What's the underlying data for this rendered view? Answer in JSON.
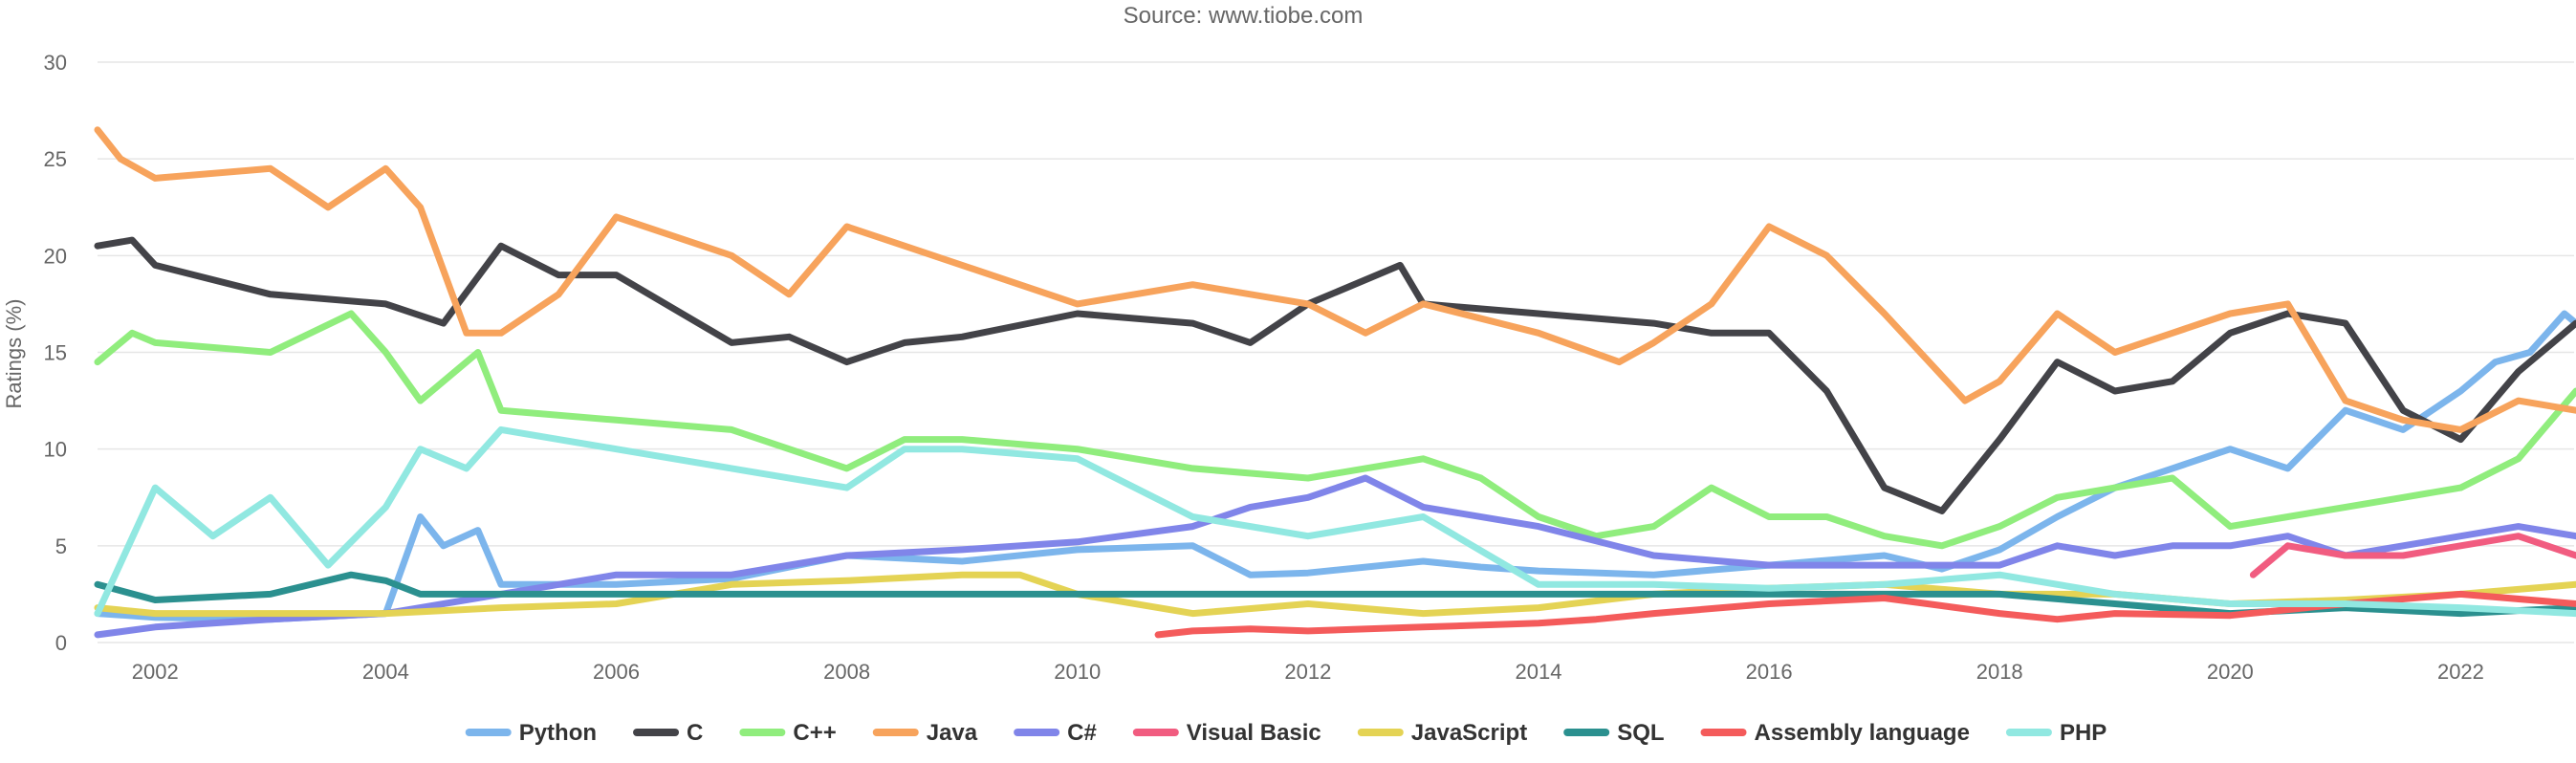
{
  "chart_data": {
    "type": "line",
    "title": "",
    "subtitle": "Source: www.tiobe.com",
    "xlabel": "",
    "ylabel": "Ratings (%)",
    "xlim": [
      2001.5,
      2023.0
    ],
    "ylim": [
      0,
      30
    ],
    "yticks": [
      0,
      5,
      10,
      15,
      20,
      25,
      30
    ],
    "xticks": [
      2002,
      2004,
      2006,
      2008,
      2010,
      2012,
      2014,
      2016,
      2018,
      2020,
      2022
    ],
    "grid": true,
    "legend_position": "bottom",
    "series": [
      {
        "name": "Python",
        "color": "#7cb5ec",
        "x": [
          2001.5,
          2002,
          2003,
          2004,
          2004.3,
          2004.5,
          2004.8,
          2005,
          2006,
          2007,
          2008,
          2009,
          2010,
          2011,
          2011.5,
          2012,
          2013,
          2013.5,
          2014,
          2015,
          2016,
          2017,
          2017.5,
          2018,
          2018.5,
          2019,
          2019.5,
          2020,
          2020.5,
          2021,
          2021.5,
          2022,
          2022.3,
          2022.6,
          2022.9,
          2023.0
        ],
        "y": [
          1.5,
          1.3,
          1.2,
          1.5,
          6.5,
          5.0,
          5.8,
          3.0,
          3.0,
          3.3,
          4.5,
          4.2,
          4.8,
          5.0,
          3.5,
          3.6,
          4.2,
          3.9,
          3.7,
          3.5,
          4.0,
          4.5,
          3.8,
          4.8,
          6.5,
          8.0,
          9.0,
          10.0,
          9.0,
          12.0,
          11.0,
          13.0,
          14.5,
          15.0,
          17.0,
          16.5
        ]
      },
      {
        "name": "C",
        "color": "#434348",
        "x": [
          2001.5,
          2001.8,
          2002,
          2003,
          2004,
          2004.5,
          2005,
          2005.5,
          2006,
          2007,
          2007.5,
          2008,
          2008.5,
          2009,
          2010,
          2011,
          2011.5,
          2012,
          2012.8,
          2013,
          2014,
          2015,
          2015.5,
          2016,
          2016.5,
          2017,
          2017.5,
          2018,
          2018.5,
          2019,
          2019.5,
          2020,
          2020.5,
          2021,
          2021.5,
          2022,
          2022.5,
          2023.0
        ],
        "y": [
          20.5,
          20.8,
          19.5,
          18.0,
          17.5,
          16.5,
          20.5,
          19.0,
          19.0,
          15.5,
          15.8,
          14.5,
          15.5,
          15.8,
          17.0,
          16.5,
          15.5,
          17.5,
          19.5,
          17.5,
          17.0,
          16.5,
          16.0,
          16.0,
          13.0,
          8.0,
          6.8,
          10.5,
          14.5,
          13.0,
          13.5,
          16.0,
          17.0,
          16.5,
          12.0,
          10.5,
          14.0,
          16.5
        ]
      },
      {
        "name": "C++",
        "color": "#90ed7d",
        "x": [
          2001.5,
          2001.8,
          2002,
          2003,
          2003.7,
          2004,
          2004.3,
          2004.8,
          2005,
          2006,
          2007,
          2008,
          2008.5,
          2009,
          2010,
          2011,
          2012,
          2013,
          2013.5,
          2014,
          2014.5,
          2015,
          2015.5,
          2016,
          2016.5,
          2017,
          2017.5,
          2018,
          2018.5,
          2019,
          2019.5,
          2020,
          2020.5,
          2021,
          2021.5,
          2022,
          2022.5,
          2023.0
        ],
        "y": [
          14.5,
          16.0,
          15.5,
          15.0,
          17.0,
          15.0,
          12.5,
          15.0,
          12.0,
          11.5,
          11.0,
          9.0,
          10.5,
          10.5,
          10.0,
          9.0,
          8.5,
          9.5,
          8.5,
          6.5,
          5.5,
          6.0,
          8.0,
          6.5,
          6.5,
          5.5,
          5.0,
          6.0,
          7.5,
          8.0,
          8.5,
          6.0,
          6.5,
          7.0,
          7.5,
          8.0,
          9.5,
          13.0
        ]
      },
      {
        "name": "Java",
        "color": "#f7a35c",
        "x": [
          2001.5,
          2001.7,
          2002,
          2003,
          2003.5,
          2004,
          2004.3,
          2004.7,
          2005,
          2005.5,
          2006,
          2007,
          2007.5,
          2008,
          2008.5,
          2009,
          2010,
          2011,
          2012,
          2012.5,
          2013,
          2014,
          2014.7,
          2015,
          2015.5,
          2016,
          2016.5,
          2017,
          2017.7,
          2018,
          2018.5,
          2019,
          2019.5,
          2020,
          2020.5,
          2021,
          2021.5,
          2022,
          2022.5,
          2023.0
        ],
        "y": [
          26.5,
          25.0,
          24.0,
          24.5,
          22.5,
          24.5,
          22.5,
          16.0,
          16.0,
          18.0,
          22.0,
          20.0,
          18.0,
          21.5,
          20.5,
          19.5,
          17.5,
          18.5,
          17.5,
          16.0,
          17.5,
          16.0,
          14.5,
          15.5,
          17.5,
          21.5,
          20.0,
          17.0,
          12.5,
          13.5,
          17.0,
          15.0,
          16.0,
          17.0,
          17.5,
          12.5,
          11.5,
          11.0,
          12.5,
          12.0
        ]
      },
      {
        "name": "C#",
        "color": "#8085e9",
        "x": [
          2001.5,
          2002,
          2003,
          2004,
          2005,
          2006,
          2007,
          2008,
          2009,
          2010,
          2011,
          2011.5,
          2012,
          2012.5,
          2013,
          2014,
          2015,
          2016,
          2017,
          2018,
          2018.5,
          2019,
          2019.5,
          2020,
          2020.5,
          2021,
          2021.5,
          2022,
          2022.5,
          2023.0
        ],
        "y": [
          0.4,
          0.8,
          1.2,
          1.5,
          2.5,
          3.5,
          3.5,
          4.5,
          4.8,
          5.2,
          6.0,
          7.0,
          7.5,
          8.5,
          7.0,
          6.0,
          4.5,
          4.0,
          4.0,
          4.0,
          5.0,
          4.5,
          5.0,
          5.0,
          5.5,
          4.5,
          5.0,
          5.5,
          6.0,
          5.5
        ]
      },
      {
        "name": "Visual Basic",
        "color": "#f15c80",
        "x": [
          2020.2,
          2020.5,
          2021,
          2021.5,
          2022,
          2022.5,
          2023.0
        ],
        "y": [
          3.5,
          5.0,
          4.5,
          4.5,
          5.0,
          5.5,
          4.5
        ]
      },
      {
        "name": "JavaScript",
        "color": "#e4d354",
        "x": [
          2001.5,
          2002,
          2003,
          2004,
          2005,
          2006,
          2007,
          2008,
          2009,
          2009.5,
          2010,
          2011,
          2012,
          2013,
          2014,
          2015,
          2016,
          2017,
          2018,
          2019,
          2020,
          2021,
          2022,
          2023.0
        ],
        "y": [
          1.8,
          1.5,
          1.5,
          1.5,
          1.8,
          2.0,
          3.0,
          3.2,
          3.5,
          3.5,
          2.5,
          1.5,
          2.0,
          1.5,
          1.8,
          2.5,
          2.8,
          3.0,
          2.5,
          2.5,
          2.0,
          2.2,
          2.5,
          3.0
        ]
      },
      {
        "name": "SQL",
        "color": "#2b908f",
        "x": [
          2001.5,
          2002,
          2003,
          2003.7,
          2004,
          2004.3,
          2010,
          2014,
          2015,
          2016,
          2017,
          2018,
          2019,
          2020,
          2021,
          2022,
          2023.0
        ],
        "y": [
          3.0,
          2.2,
          2.5,
          3.5,
          3.2,
          2.5,
          2.5,
          2.5,
          2.5,
          2.5,
          2.5,
          2.5,
          2.0,
          1.5,
          1.8,
          1.5,
          1.8
        ]
      },
      {
        "name": "Assembly language",
        "color": "#f45b5b",
        "x": [
          2010.7,
          2011,
          2011.5,
          2012,
          2013,
          2014,
          2014.5,
          2015,
          2016,
          2017,
          2018,
          2018.5,
          2019,
          2020,
          2021,
          2022,
          2023.0
        ],
        "y": [
          0.4,
          0.6,
          0.7,
          0.6,
          0.8,
          1.0,
          1.2,
          1.5,
          2.0,
          2.3,
          1.5,
          1.2,
          1.5,
          1.4,
          2.0,
          2.5,
          2.0
        ]
      },
      {
        "name": "PHP",
        "color": "#91e8e1",
        "x": [
          2001.5,
          2002,
          2002.5,
          2003,
          2003.5,
          2004,
          2004.3,
          2004.7,
          2005,
          2006,
          2007,
          2008,
          2008.5,
          2009,
          2010,
          2011,
          2012,
          2013,
          2014,
          2015,
          2016,
          2017,
          2018,
          2019,
          2020,
          2021,
          2022,
          2023.0
        ],
        "y": [
          1.5,
          8.0,
          5.5,
          7.5,
          4.0,
          7.0,
          10.0,
          9.0,
          11.0,
          10.0,
          9.0,
          8.0,
          10.0,
          10.0,
          9.5,
          6.5,
          5.5,
          6.5,
          3.0,
          3.0,
          2.8,
          3.0,
          3.5,
          2.5,
          2.0,
          2.0,
          1.8,
          1.5
        ]
      }
    ]
  }
}
